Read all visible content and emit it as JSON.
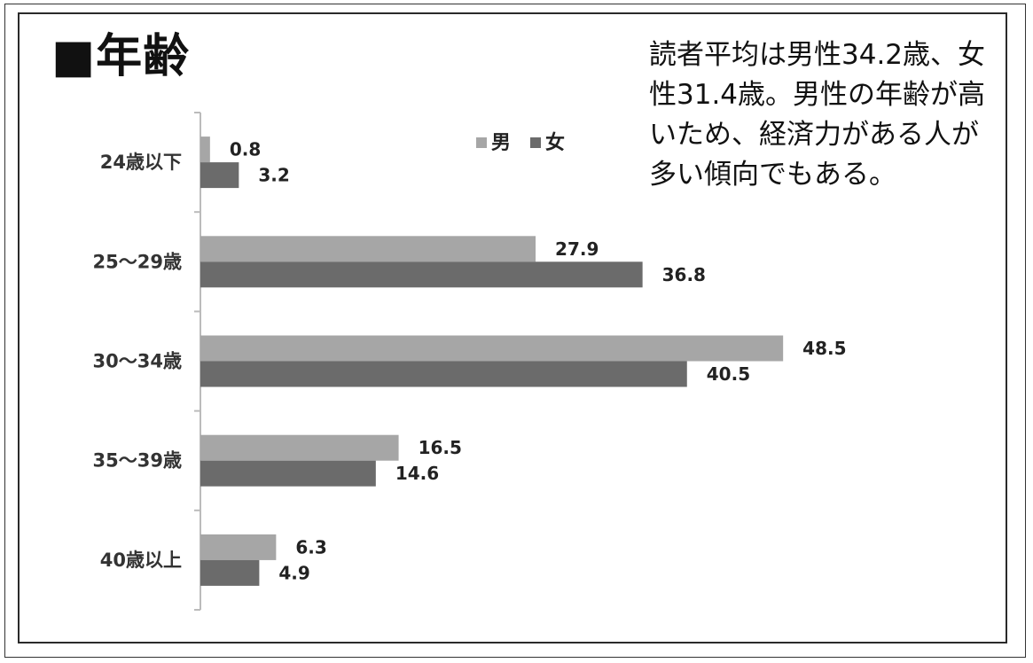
{
  "title": "■年齢",
  "note": "読者平均は男性34.2歳、女性31.4歳。男性の年齢が高いため、経済力がある人が多い傾向でもある。",
  "chart_data": {
    "type": "bar",
    "orientation": "horizontal",
    "categories": [
      "24歳以下",
      "25〜29歳",
      "30〜34歳",
      "35〜39歳",
      "40歳以上"
    ],
    "series": [
      {
        "name": "男",
        "values": [
          0.8,
          27.9,
          48.5,
          16.5,
          6.3
        ],
        "color": "#a6a6a6"
      },
      {
        "name": "女",
        "values": [
          3.2,
          36.8,
          40.5,
          14.6,
          4.9
        ],
        "color": "#6b6b6b"
      }
    ],
    "xlim": [
      0,
      60
    ],
    "legend_position": "top-right",
    "grid": false
  }
}
